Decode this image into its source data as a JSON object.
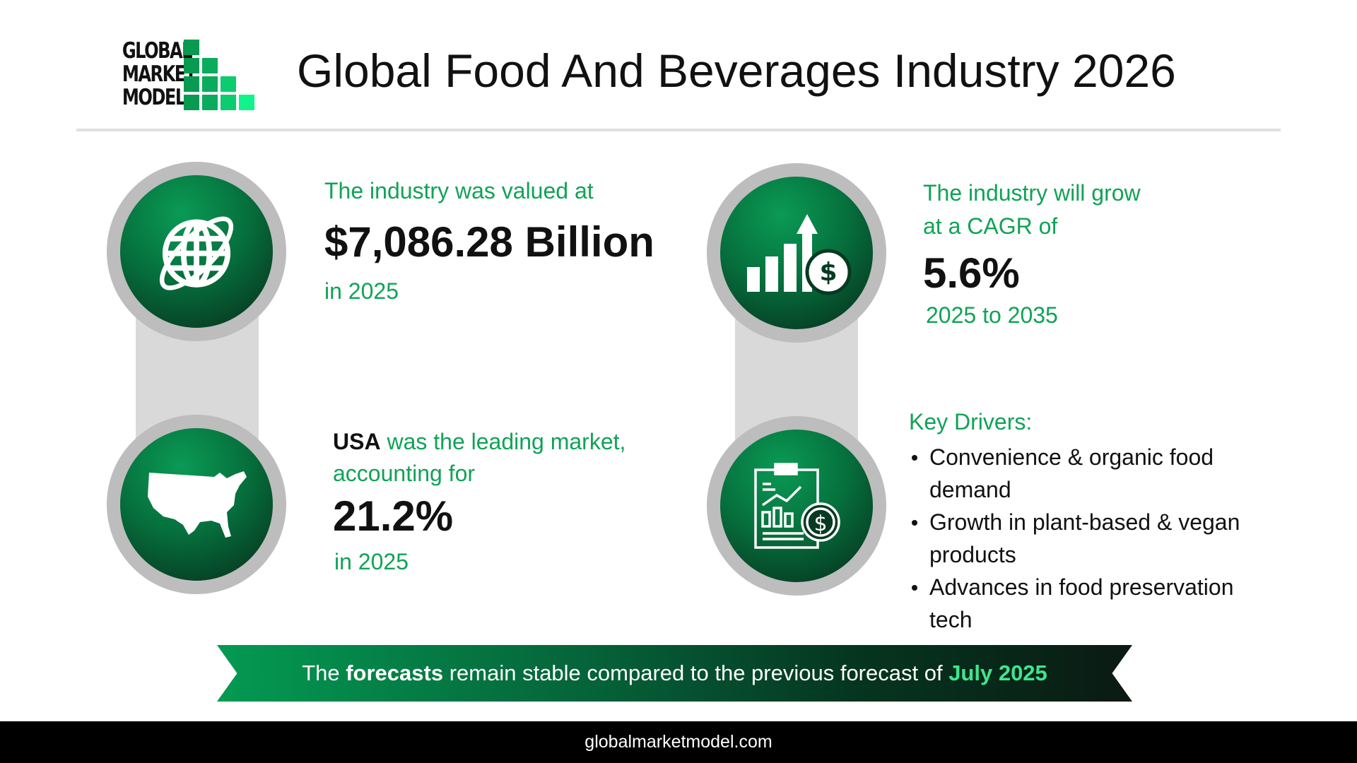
{
  "logo": {
    "line1": "GLOBAL",
    "line2": "MARKET",
    "line3": "MODEL"
  },
  "title": "Global Food And Beverages Industry 2026",
  "colors": {
    "accent": "#0fa356",
    "highlight": "#3ee68f",
    "circle_ring": "#bdbdbd"
  },
  "market_value": {
    "icon": "globe-icon",
    "intro": "The industry was valued at",
    "value": "$7,086.28 Billion",
    "year": "in 2025"
  },
  "leading_market": {
    "icon": "usa-map-icon",
    "country": "USA",
    "intro": " was the leading market,",
    "intro2": "accounting for",
    "value": "21.2%",
    "year": "in 2025"
  },
  "cagr": {
    "icon": "growth-chart-dollar-icon",
    "intro1": "The industry will grow",
    "intro2": "at a CAGR of",
    "value": "5.6%",
    "period": "2025 to 2035"
  },
  "drivers": {
    "icon": "report-clipboard-dollar-icon",
    "heading": "Key Drivers:",
    "items": [
      "Convenience & organic food demand",
      "Growth in plant-based & vegan products",
      "Advances in food preservation tech"
    ]
  },
  "banner": {
    "pre": "The ",
    "bold": "forecasts",
    "mid": " remain stable compared to the previous forecast of ",
    "highlight": "July 2025"
  },
  "footer": {
    "url": "globalmarketmodel.com"
  }
}
